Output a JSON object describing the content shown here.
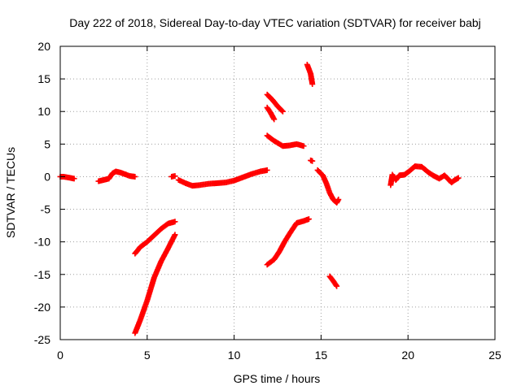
{
  "chart_data": {
    "type": "scatter",
    "title": "Day 222 of 2018, Sidereal Day-to-day VTEC variation (SDTVAR) for receiver babj",
    "xlabel": "GPS time / hours",
    "ylabel": "SDTVAR / TECUs",
    "xlim": [
      0,
      25
    ],
    "ylim": [
      -25,
      20
    ],
    "xticks": [
      "0",
      "5",
      "10",
      "15",
      "20",
      "25"
    ],
    "yticks": [
      "-25",
      "-20",
      "-15",
      "-10",
      "-5",
      "0",
      "5",
      "10",
      "15",
      "20"
    ],
    "grid": true,
    "marker_color": "#ff0000",
    "series": [
      {
        "segments": [
          [
            [
              0.0,
              0.0
            ],
            [
              0.2,
              0.0
            ],
            [
              0.4,
              -0.1
            ],
            [
              0.6,
              -0.2
            ],
            [
              0.8,
              -0.3
            ]
          ],
          [
            [
              2.2,
              -0.7
            ],
            [
              2.5,
              -0.5
            ],
            [
              2.8,
              -0.3
            ],
            [
              3.0,
              0.5
            ],
            [
              3.2,
              0.8
            ],
            [
              3.5,
              0.6
            ],
            [
              3.8,
              0.3
            ],
            [
              4.0,
              0.1
            ],
            [
              4.3,
              0.0
            ]
          ],
          [
            [
              6.4,
              0.0
            ],
            [
              6.6,
              0.1
            ]
          ],
          [
            [
              6.8,
              -0.5
            ],
            [
              7.2,
              -1.0
            ],
            [
              7.6,
              -1.4
            ],
            [
              8.0,
              -1.3
            ],
            [
              8.5,
              -1.1
            ],
            [
              9.0,
              -1.0
            ],
            [
              9.5,
              -0.9
            ],
            [
              10.0,
              -0.6
            ],
            [
              10.5,
              -0.1
            ],
            [
              11.0,
              0.4
            ],
            [
              11.5,
              0.8
            ],
            [
              11.9,
              1.0
            ]
          ],
          [
            [
              4.3,
              -11.8
            ],
            [
              4.6,
              -10.8
            ],
            [
              5.0,
              -10.0
            ],
            [
              5.4,
              -9.0
            ],
            [
              5.8,
              -8.0
            ],
            [
              6.2,
              -7.2
            ],
            [
              6.6,
              -6.9
            ]
          ],
          [
            [
              4.3,
              -24.0
            ],
            [
              4.6,
              -22.0
            ],
            [
              5.0,
              -19.0
            ],
            [
              5.4,
              -15.5
            ],
            [
              5.8,
              -13.0
            ],
            [
              6.2,
              -11.0
            ],
            [
              6.6,
              -8.9
            ]
          ],
          [
            [
              11.9,
              6.3
            ],
            [
              12.3,
              5.5
            ],
            [
              12.8,
              4.7
            ],
            [
              13.2,
              4.8
            ],
            [
              13.6,
              5.0
            ],
            [
              14.0,
              4.7
            ]
          ],
          [
            [
              11.9,
              12.6
            ],
            [
              12.2,
              11.8
            ],
            [
              12.5,
              10.8
            ],
            [
              12.8,
              10.0
            ]
          ],
          [
            [
              11.9,
              10.6
            ],
            [
              12.1,
              9.8
            ],
            [
              12.3,
              8.8
            ]
          ],
          [
            [
              11.9,
              -13.5
            ],
            [
              12.3,
              -12.7
            ],
            [
              12.6,
              -11.5
            ],
            [
              12.9,
              -10.0
            ],
            [
              13.2,
              -8.7
            ],
            [
              13.6,
              -7.1
            ],
            [
              14.0,
              -6.8
            ],
            [
              14.3,
              -6.5
            ]
          ],
          [
            [
              14.2,
              17.2
            ],
            [
              14.4,
              15.8
            ],
            [
              14.5,
              14.2
            ]
          ],
          [
            [
              14.4,
              2.5
            ],
            [
              14.5,
              2.4
            ]
          ],
          [
            [
              14.8,
              1.0
            ],
            [
              15.1,
              0.2
            ],
            [
              15.3,
              -1.0
            ],
            [
              15.5,
              -2.5
            ],
            [
              15.7,
              -3.5
            ],
            [
              15.9,
              -4.0
            ],
            [
              16.0,
              -3.5
            ]
          ],
          [
            [
              15.5,
              -15.3
            ],
            [
              15.7,
              -16.0
            ],
            [
              15.9,
              -16.8
            ]
          ],
          [
            [
              19.0,
              -1.3
            ],
            [
              19.1,
              0.3
            ],
            [
              19.3,
              -0.5
            ],
            [
              19.5,
              0.2
            ],
            [
              19.8,
              0.3
            ],
            [
              20.1,
              0.9
            ],
            [
              20.4,
              1.6
            ],
            [
              20.8,
              1.5
            ],
            [
              21.2,
              0.6
            ],
            [
              21.5,
              0.1
            ],
            [
              21.8,
              -0.3
            ],
            [
              22.1,
              0.2
            ],
            [
              22.5,
              -0.9
            ],
            [
              22.7,
              -0.5
            ],
            [
              22.9,
              -0.2
            ]
          ]
        ]
      }
    ]
  }
}
